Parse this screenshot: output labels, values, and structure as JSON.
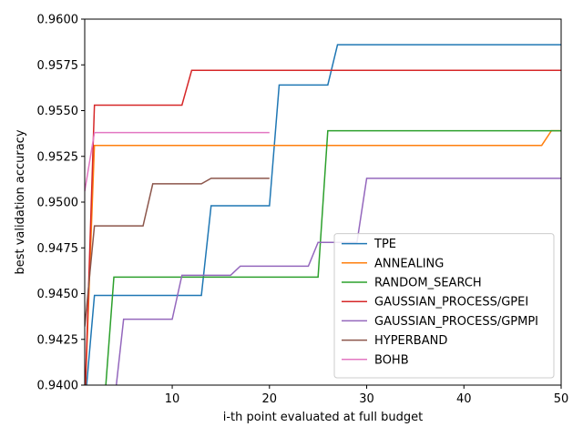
{
  "chart_data": {
    "type": "line",
    "title": "",
    "xlabel": "i-th point evaluated at full budget",
    "ylabel": "best validation accuracy",
    "xlim": [
      1,
      50
    ],
    "ylim": [
      0.94,
      0.96
    ],
    "x_ticks": [
      10,
      20,
      30,
      40,
      50
    ],
    "y_ticks": [
      0.94,
      0.9425,
      0.945,
      0.9475,
      0.95,
      0.9525,
      0.955,
      0.9575,
      0.96
    ],
    "y_tick_labels": [
      "0.9400",
      "0.9425",
      "0.9450",
      "0.9475",
      "0.9500",
      "0.9525",
      "0.9550",
      "0.9575",
      "0.9600"
    ],
    "grid": false,
    "legend_position": "lower-right",
    "series": [
      {
        "name": "TPE",
        "color": "#1f77b4",
        "points": [
          [
            1,
            0.9388
          ],
          [
            2,
            0.9449
          ],
          [
            13,
            0.9449
          ],
          [
            14,
            0.9498
          ],
          [
            20,
            0.9498
          ],
          [
            21,
            0.9564
          ],
          [
            26,
            0.9564
          ],
          [
            27,
            0.9586
          ],
          [
            50,
            0.9586
          ]
        ]
      },
      {
        "name": "ANNEALING",
        "color": "#ff7f0e",
        "points": [
          [
            1,
            0.9388
          ],
          [
            2,
            0.9531
          ],
          [
            48,
            0.9531
          ],
          [
            49,
            0.9539
          ],
          [
            50,
            0.9539
          ]
        ]
      },
      {
        "name": "RANDOM_SEARCH",
        "color": "#2ca02c",
        "points": [
          [
            1,
            0.9388
          ],
          [
            3,
            0.9388
          ],
          [
            4,
            0.9459
          ],
          [
            25,
            0.9459
          ],
          [
            26,
            0.9539
          ],
          [
            50,
            0.9539
          ]
        ]
      },
      {
        "name": "GAUSSIAN_PROCESS/GPEI",
        "color": "#d62728",
        "points": [
          [
            1,
            0.9388
          ],
          [
            2,
            0.9553
          ],
          [
            11,
            0.9553
          ],
          [
            12,
            0.9572
          ],
          [
            50,
            0.9572
          ]
        ]
      },
      {
        "name": "GAUSSIAN_PROCESS/GPMPI",
        "color": "#9467bd",
        "points": [
          [
            2,
            0.9388
          ],
          [
            4,
            0.9388
          ],
          [
            5,
            0.9436
          ],
          [
            10,
            0.9436
          ],
          [
            11,
            0.946
          ],
          [
            16,
            0.946
          ],
          [
            17,
            0.9465
          ],
          [
            24,
            0.9465
          ],
          [
            25,
            0.9478
          ],
          [
            29,
            0.9478
          ],
          [
            30,
            0.9513
          ],
          [
            50,
            0.9513
          ]
        ]
      },
      {
        "name": "HYPERBAND",
        "color": "#8c564b",
        "points": [
          [
            1,
            0.9432
          ],
          [
            2,
            0.9487
          ],
          [
            7,
            0.9487
          ],
          [
            8,
            0.951
          ],
          [
            13,
            0.951
          ],
          [
            14,
            0.9513
          ],
          [
            20,
            0.9513
          ]
        ]
      },
      {
        "name": "BOHB",
        "color": "#e377c2",
        "points": [
          [
            1,
            0.9506
          ],
          [
            2,
            0.9538
          ],
          [
            20,
            0.9538
          ]
        ]
      }
    ]
  }
}
